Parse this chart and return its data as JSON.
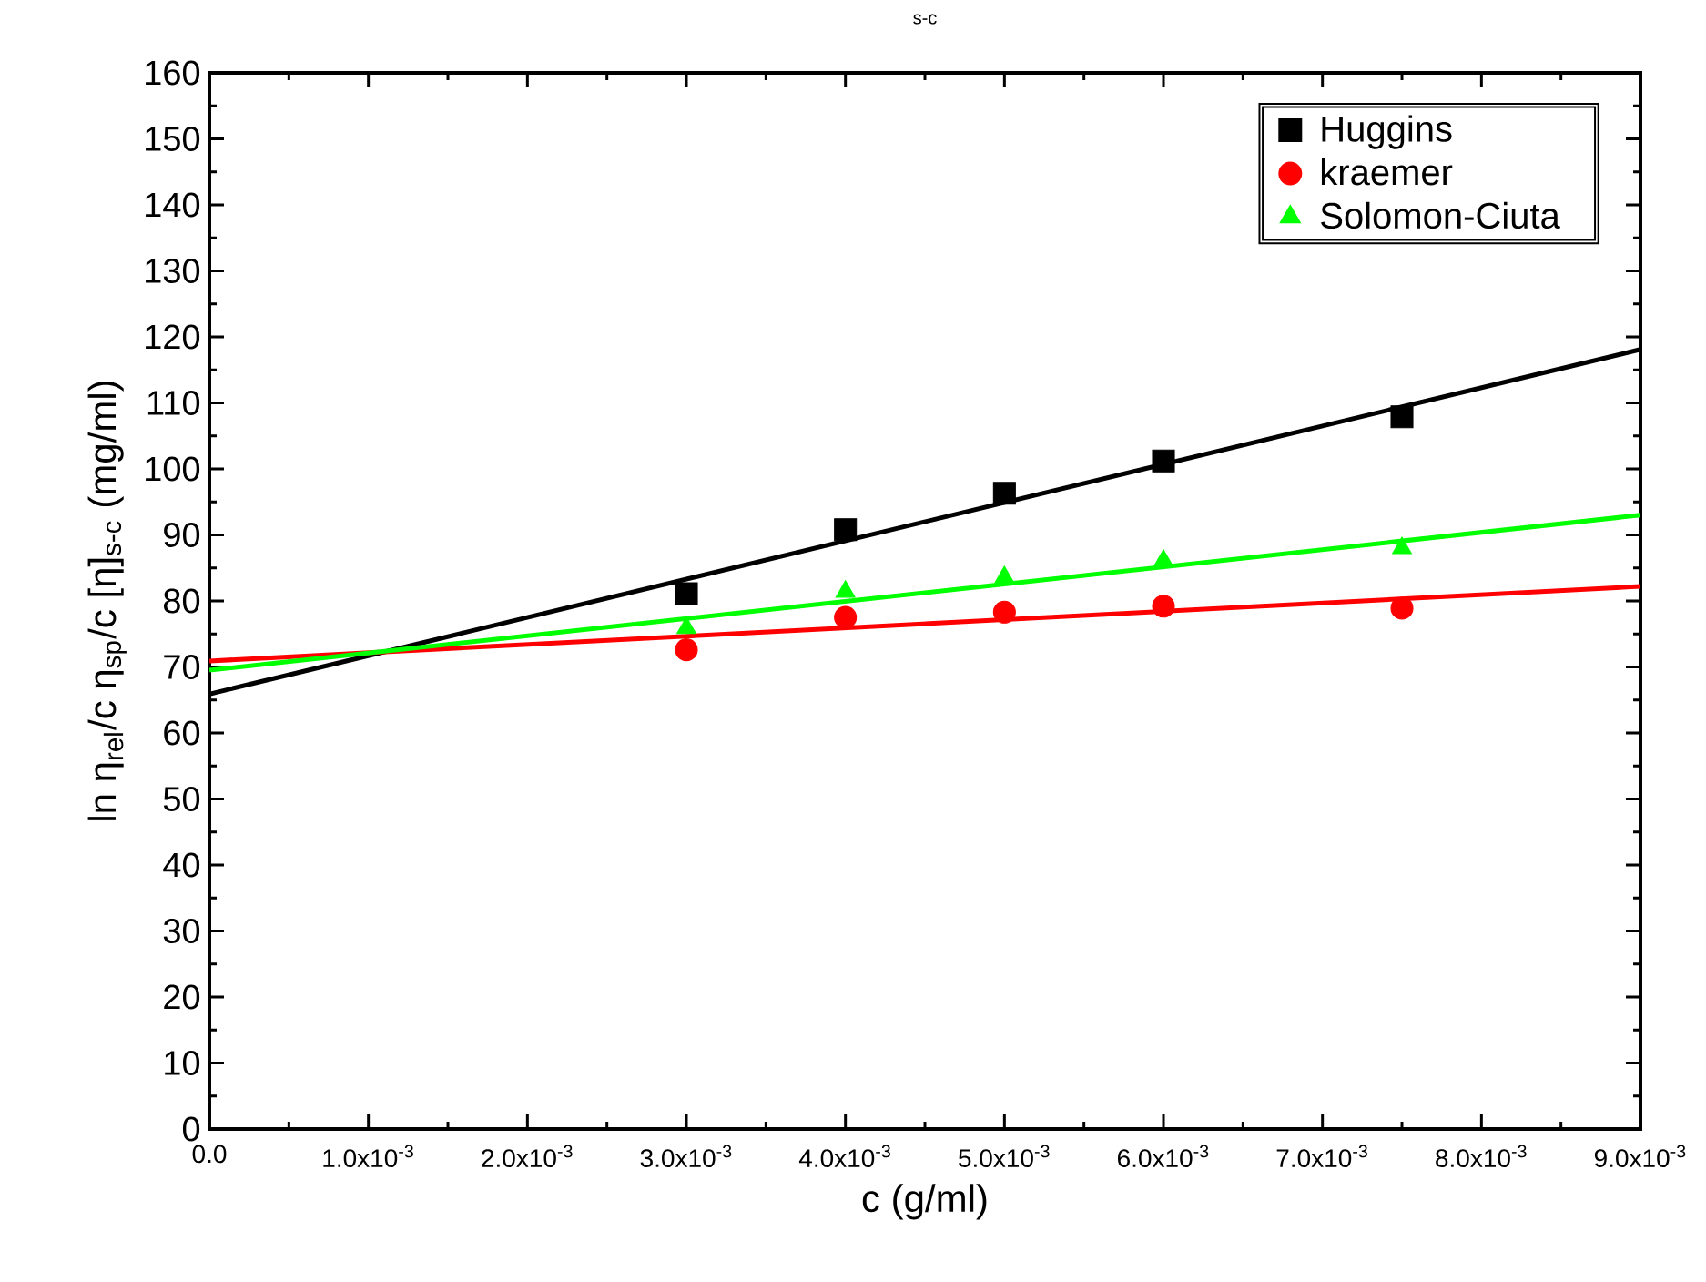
{
  "chart_data": {
    "type": "scatter",
    "title": "s-c",
    "xlabel": "c (g/ml)",
    "ylabel": "ln η$_{rel}$/c η$_{sp}$/c [η]$_{s-c}$ (mg/ml)",
    "xlim": [
      0,
      0.009
    ],
    "ylim": [
      0,
      160
    ],
    "xticks": [
      {
        "value": 0,
        "label": "0.0"
      },
      {
        "value": 0.001,
        "label": "1.0x10$^{-3}$"
      },
      {
        "value": 0.002,
        "label": "2.0x10$^{-3}$"
      },
      {
        "value": 0.003,
        "label": "3.0x10$^{-3}$"
      },
      {
        "value": 0.004,
        "label": "4.0x10$^{-3}$"
      },
      {
        "value": 0.005,
        "label": "5.0x10$^{-3}$"
      },
      {
        "value": 0.006,
        "label": "6.0x10$^{-3}$"
      },
      {
        "value": 0.007,
        "label": "7.0x10$^{-3}$"
      },
      {
        "value": 0.008,
        "label": "8.0x10$^{-3}$"
      },
      {
        "value": 0.009,
        "label": "9.0x10$^{-3}$"
      }
    ],
    "yticks": [
      0,
      10,
      20,
      30,
      40,
      50,
      60,
      70,
      80,
      90,
      100,
      110,
      120,
      130,
      140,
      150,
      160
    ],
    "legend": "top right",
    "grid": false,
    "series": [
      {
        "name": "Huggins",
        "marker": "square",
        "color": "#000000",
        "x": [
          0.003,
          0.004,
          0.005,
          0.006,
          0.0075
        ],
        "values": [
          81.1,
          90.8,
          96.3,
          101.2,
          107.9
        ]
      },
      {
        "name": "kraemer",
        "marker": "circle",
        "color": "#ff0000",
        "x": [
          0.003,
          0.004,
          0.005,
          0.006,
          0.0075
        ],
        "values": [
          72.6,
          77.5,
          78.3,
          79.2,
          78.9
        ]
      },
      {
        "name": "Solomon-Ciuta",
        "marker": "triangle",
        "color": "#00ff00",
        "x": [
          0.003,
          0.004,
          0.005,
          0.006,
          0.0075
        ],
        "values": [
          75.9,
          81.4,
          83.6,
          86.1,
          88.0
        ]
      },
      {
        "type": "line",
        "marker": "none",
        "line_style": "solid",
        "color": "#000000",
        "x": [
          0,
          0.009
        ],
        "values": [
          65.9,
          118.1
        ]
      },
      {
        "type": "line",
        "marker": "none",
        "line_style": "solid",
        "color": "#ff0000",
        "x": [
          0,
          0.009
        ],
        "values": [
          70.9,
          82.2
        ]
      },
      {
        "type": "line",
        "marker": "none",
        "line_style": "solid",
        "color": "#00ff00",
        "x": [
          0,
          0.009
        ],
        "values": [
          69.5,
          93.0
        ]
      }
    ]
  }
}
